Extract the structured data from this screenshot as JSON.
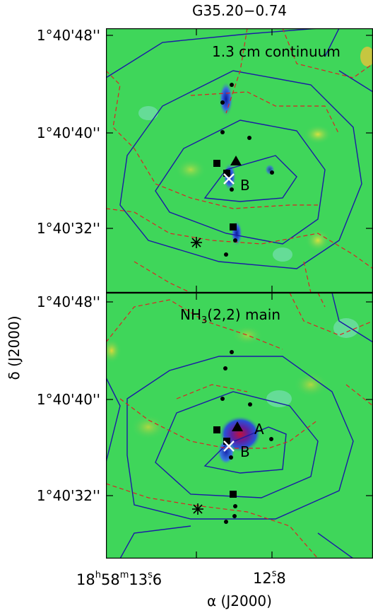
{
  "figure": {
    "title": "G35.20−0.74",
    "ylabel": "δ (J2000)",
    "xlabel": "α (J2000)",
    "yticks_top": [
      "1°40'48''",
      "1°40'40''",
      "1°40'32''"
    ],
    "yticks_bot": [
      "1°40'48''",
      "1°40'40''",
      "1°40'32''"
    ],
    "xticks": [
      {
        "h": "18",
        "m": "58",
        "s": "13",
        "frac": ".6"
      },
      {
        "s": "12",
        "frac": ".8"
      }
    ]
  },
  "panels": [
    {
      "label": "1.3 cm continuum",
      "source_labels": [
        "B"
      ]
    },
    {
      "label_main": "NH",
      "label_sub": "3",
      "label_rest": "(2,2) main",
      "source_labels": [
        "A",
        "B"
      ]
    }
  ],
  "colors": {
    "background_map": "#33dd44",
    "contour_solid": "#1a1aa6",
    "contour_dashed": "#cc2222",
    "emission_blue": "#1530c0",
    "emission_peak": "#c0103a"
  }
}
